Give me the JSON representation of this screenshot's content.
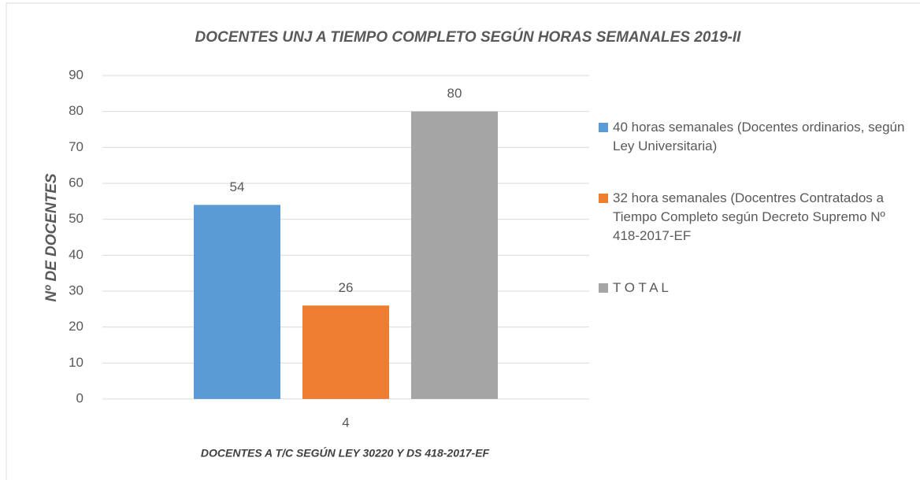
{
  "chart_data": {
    "type": "bar",
    "title": "DOCENTES UNJ A TIEMPO COMPLETO SEGÚN HORAS SEMANALES 2019-II",
    "y_label": "Nº DE DOCENTES",
    "x_label": "DOCENTES A T/C  SEGÚN  LEY 30220 Y DS 418-2017-EF",
    "categories": [
      "4"
    ],
    "series": [
      {
        "name": "40 horas semanales (Docentes ordinarios, según Ley Universitaria)",
        "color": "#5b9bd5",
        "values": [
          54
        ]
      },
      {
        "name": "32 hora semanales (Docentres Contratados a Tiempo Completo según Decreto Supremo Nº 418-2017-EF",
        "color": "#ed7d31",
        "values": [
          26
        ]
      },
      {
        "name": "T O T A L",
        "color": "#a5a5a5",
        "values": [
          80
        ]
      }
    ],
    "ylim": [
      0,
      90
    ],
    "yticks": [
      0,
      10,
      20,
      30,
      40,
      50,
      60,
      70,
      80,
      90
    ],
    "grid": true,
    "legend": "right"
  }
}
